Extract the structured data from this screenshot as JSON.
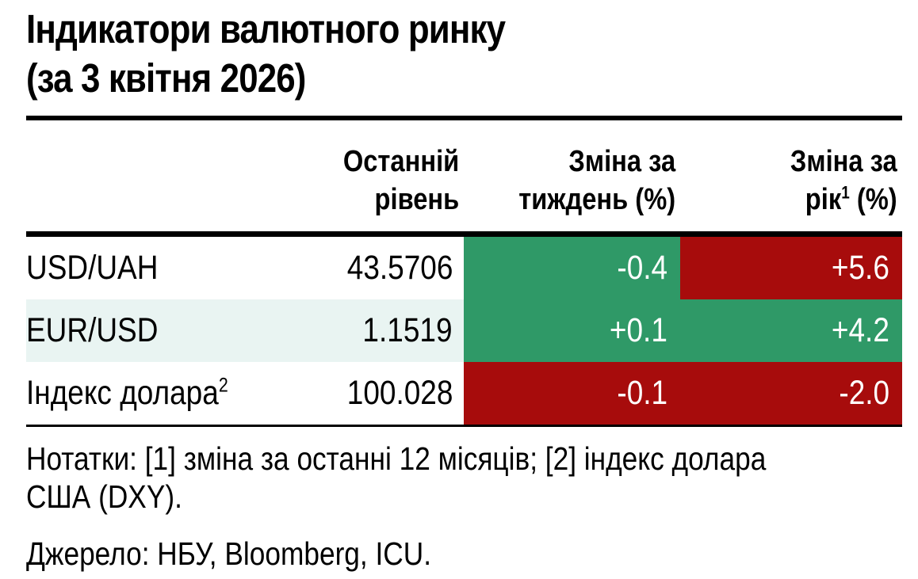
{
  "title": {
    "line1": "Індикатори валютного ринку",
    "line2": "(за 3 квітня 2026)"
  },
  "table": {
    "headers": [
      {
        "line1": "Останній",
        "line2_pre": "рівень",
        "sup": "",
        "line2_post": ""
      },
      {
        "line1": "Зміна за",
        "line2_pre": "тиждень (%)",
        "sup": "",
        "line2_post": ""
      },
      {
        "line1": "Зміна за",
        "line2_pre": "рік",
        "sup": "1",
        "line2_post": " (%)"
      }
    ],
    "rows": [
      {
        "label": "USD/UAH",
        "label_sup": "",
        "level": "43.5706",
        "tint": "",
        "week": {
          "value": "-0.4",
          "color": "green"
        },
        "year": {
          "value": "+5.6",
          "color": "red"
        }
      },
      {
        "label": "EUR/USD",
        "label_sup": "",
        "level": "1.1519",
        "tint": "row_tint",
        "week": {
          "value": "+0.1",
          "color": "green"
        },
        "year": {
          "value": "+4.2",
          "color": "green"
        }
      },
      {
        "label": "Індекс долара",
        "label_sup": "2",
        "level": "100.028",
        "tint": "",
        "week": {
          "value": "-0.1",
          "color": "red"
        },
        "year": {
          "value": "-2.0",
          "color": "red"
        }
      }
    ]
  },
  "notes": {
    "lines": [
      "Нотатки: [1] зміна за останні 12 місяців; [2] індекс долара",
      "США (DXY)."
    ]
  },
  "source": "Джерело: НБУ, Bloomberg, ICU.",
  "colors": {
    "green": "#2F9967",
    "red": "#A70C0C",
    "row_tint": "#E9F4F2",
    "text": "#000000",
    "cell_text": "#FFFFFF"
  },
  "chart_data": {
    "type": "table",
    "title": "Індикатори валютного ринку (за 3 квітня 2026)",
    "columns": [
      "",
      "Останній рівень",
      "Зміна за тиждень (%)",
      "Зміна за рік [1] (%)"
    ],
    "rows": [
      [
        "USD/UAH",
        43.5706,
        -0.4,
        5.6
      ],
      [
        "EUR/USD",
        1.1519,
        0.1,
        4.2
      ],
      [
        "Індекс долара [2]",
        100.028,
        -0.1,
        -2.0
      ]
    ],
    "cell_colors": {
      "week_change": [
        "green",
        "green",
        "red"
      ],
      "year_change": [
        "red",
        "green",
        "red"
      ]
    },
    "notes": "Нотатки: [1] зміна за останні 12 місяців; [2] індекс долара США (DXY).",
    "source": "Джерело: НБУ, Bloomberg, ICU."
  }
}
